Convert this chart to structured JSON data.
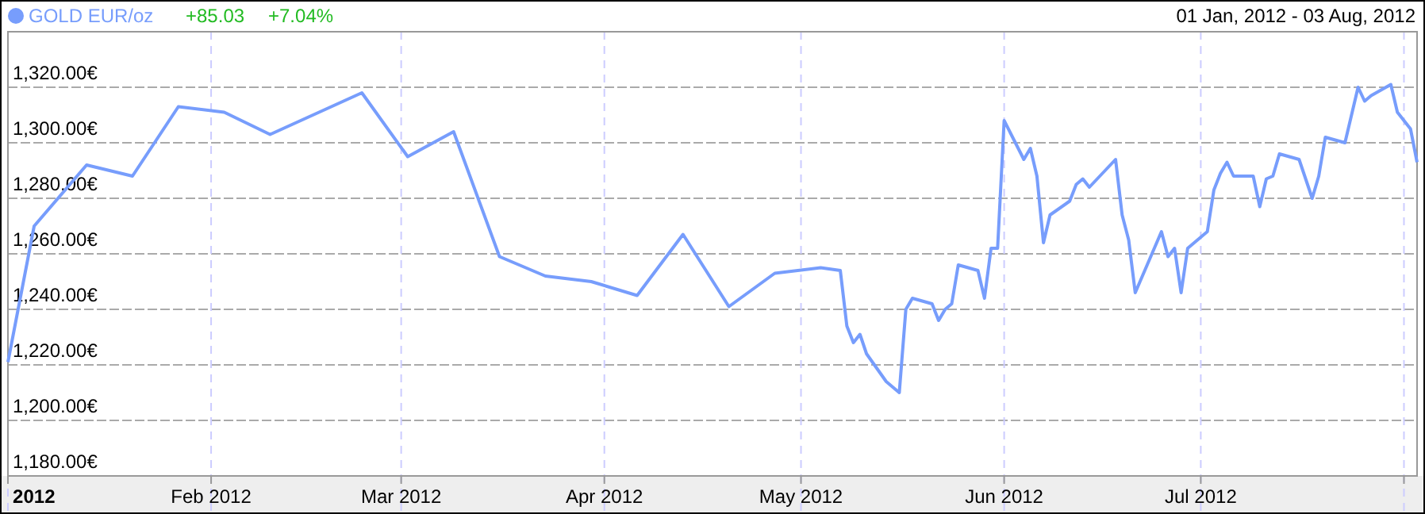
{
  "chart_data": {
    "type": "line",
    "subtitle": "01 Jan, 2012 - 03 Aug, 2012",
    "annotations": [
      "+85.03",
      "+7.04%"
    ],
    "legend": "top left",
    "grid": true,
    "marker": "none",
    "line_style": "solid",
    "xlim": [
      "2012-01-01",
      "2012-08-03"
    ],
    "xticks": [
      {
        "value": "2012-01-01",
        "label": "2012"
      },
      {
        "value": "2012-02-01",
        "label": "Feb 2012"
      },
      {
        "value": "2012-03-01",
        "label": "Mar 2012"
      },
      {
        "value": "2012-04-01",
        "label": "Apr 2012"
      },
      {
        "value": "2012-05-01",
        "label": "May 2012"
      },
      {
        "value": "2012-06-01",
        "label": "Jun 2012"
      },
      {
        "value": "2012-07-01",
        "label": "Jul 2012"
      },
      {
        "value": "2012-08-01",
        "label": null
      }
    ],
    "ylim": [
      1180,
      1340
    ],
    "yticks": [
      {
        "value": 1180,
        "label": "1,180.00€"
      },
      {
        "value": 1200,
        "label": "1,200.00€"
      },
      {
        "value": 1220,
        "label": "1,220.00€"
      },
      {
        "value": 1240,
        "label": "1,240.00€"
      },
      {
        "value": 1260,
        "label": "1,260.00€"
      },
      {
        "value": 1280,
        "label": "1,280.00€"
      },
      {
        "value": 1300,
        "label": "1,300.00€"
      },
      {
        "value": 1320,
        "label": "1,320.00€"
      }
    ],
    "series": [
      {
        "name": "GOLD EUR/oz",
        "color": "#779dfc",
        "x": [
          "2012-01-01",
          "2012-01-05",
          "2012-01-13",
          "2012-01-20",
          "2012-01-27",
          "2012-02-03",
          "2012-02-10",
          "2012-02-24",
          "2012-03-02",
          "2012-03-09",
          "2012-03-16",
          "2012-03-23",
          "2012-03-30",
          "2012-04-06",
          "2012-04-13",
          "2012-04-20",
          "2012-04-27",
          "2012-05-04",
          "2012-05-07",
          "2012-05-08",
          "2012-05-09",
          "2012-05-10",
          "2012-05-11",
          "2012-05-14",
          "2012-05-16",
          "2012-05-17",
          "2012-05-18",
          "2012-05-21",
          "2012-05-22",
          "2012-05-23",
          "2012-05-24",
          "2012-05-25",
          "2012-05-28",
          "2012-05-29",
          "2012-05-30",
          "2012-05-31",
          "2012-06-01",
          "2012-06-04",
          "2012-06-05",
          "2012-06-06",
          "2012-06-07",
          "2012-06-08",
          "2012-06-11",
          "2012-06-12",
          "2012-06-13",
          "2012-06-14",
          "2012-06-18",
          "2012-06-19",
          "2012-06-20",
          "2012-06-21",
          "2012-06-25",
          "2012-06-26",
          "2012-06-27",
          "2012-06-28",
          "2012-06-29",
          "2012-07-02",
          "2012-07-03",
          "2012-07-04",
          "2012-07-05",
          "2012-07-06",
          "2012-07-09",
          "2012-07-10",
          "2012-07-11",
          "2012-07-12",
          "2012-07-13",
          "2012-07-16",
          "2012-07-18",
          "2012-07-19",
          "2012-07-20",
          "2012-07-23",
          "2012-07-25",
          "2012-07-26",
          "2012-07-27",
          "2012-07-30",
          "2012-07-31",
          "2012-08-02",
          "2012-08-03"
        ],
        "values": [
          1221,
          1270,
          1292,
          1288,
          1313,
          1311,
          1303,
          1318,
          1295,
          1304,
          1259,
          1252,
          1250,
          1245,
          1267,
          1241,
          1253,
          1255,
          1254,
          1234,
          1228,
          1231,
          1224,
          1214,
          1210,
          1240,
          1244,
          1242,
          1236,
          1240,
          1242,
          1256,
          1254,
          1244,
          1262,
          1262,
          1308,
          1294,
          1298,
          1288,
          1264,
          1274,
          1279,
          1285,
          1287,
          1284,
          1294,
          1274,
          1265,
          1246,
          1268,
          1259,
          1262,
          1246,
          1262,
          1268,
          1283,
          1289,
          1293,
          1288,
          1288,
          1277,
          1287,
          1288,
          1296,
          1294,
          1280,
          1288,
          1302,
          1300,
          1320,
          1315,
          1317,
          1321,
          1311,
          1305,
          1293
        ]
      }
    ]
  }
}
